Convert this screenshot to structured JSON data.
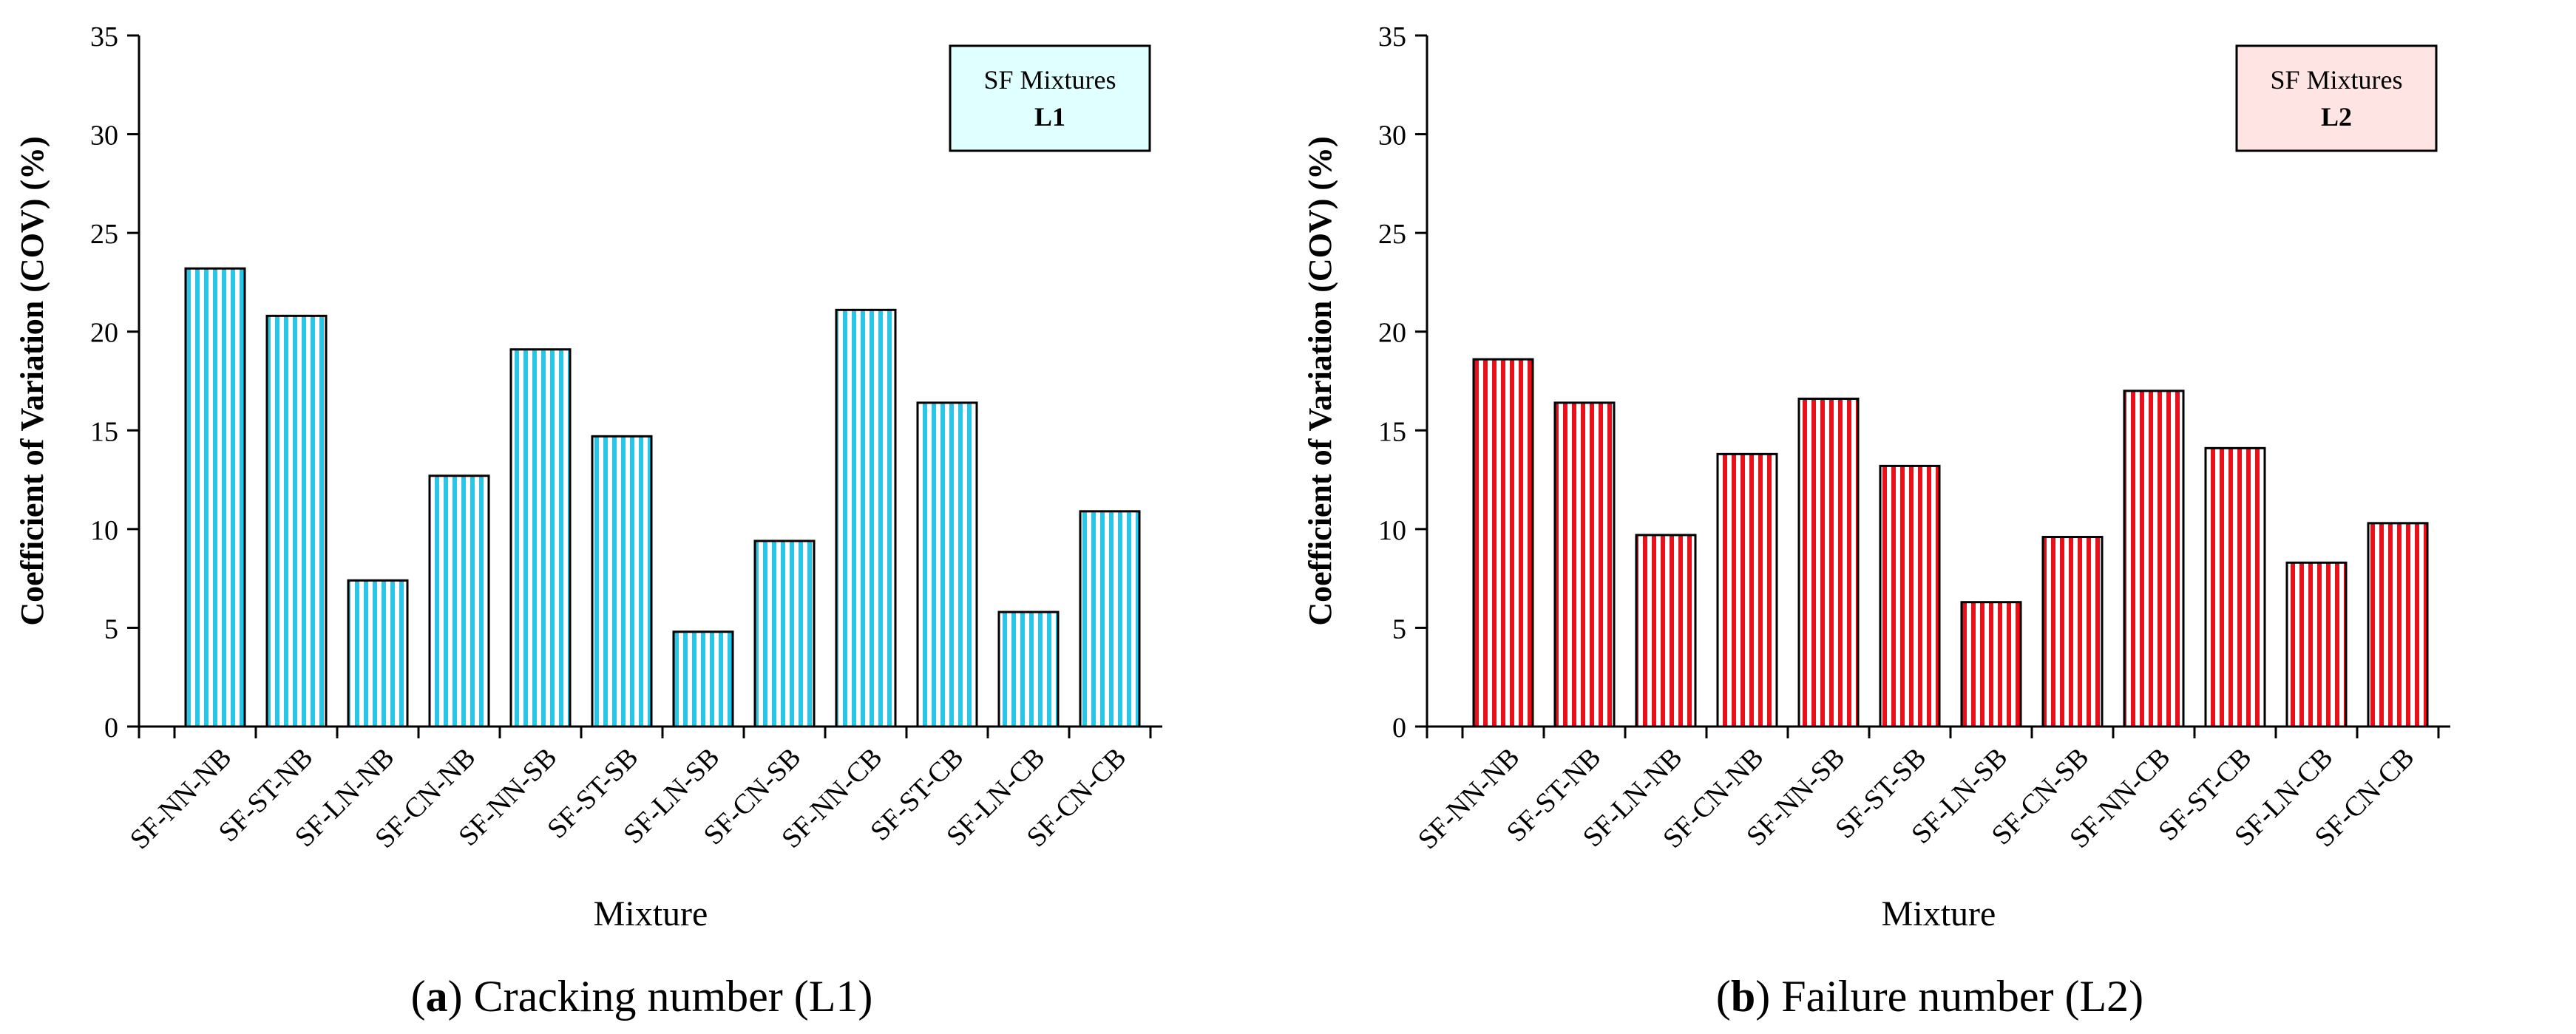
{
  "chart_data": [
    {
      "type": "bar",
      "panel_label": "a",
      "caption": " Cracking number (L1)",
      "legend_title": "SF Mixtures",
      "legend_label": "L1",
      "xlabel": "Mixture",
      "ylabel": "Coefficient of Variation (COV) (%)",
      "ylim": [
        0,
        35
      ],
      "yticks": [
        0,
        5,
        10,
        15,
        20,
        25,
        30,
        35
      ],
      "categories": [
        "SF-NN-NB",
        "SF-ST-NB",
        "SF-LN-NB",
        "SF-CN-NB",
        "SF-NN-SB",
        "SF-ST-SB",
        "SF-LN-SB",
        "SF-CN-SB",
        "SF-NN-CB",
        "SF-ST-CB",
        "SF-LN-CB",
        "SF-CN-CB"
      ],
      "values": [
        23.2,
        20.8,
        7.4,
        12.7,
        19.1,
        14.7,
        4.8,
        9.4,
        21.1,
        16.4,
        5.8,
        10.9
      ],
      "colors": {
        "stripe": "#29c6e8",
        "legend_bg": "#e0ffff"
      }
    },
    {
      "type": "bar",
      "panel_label": "b",
      "caption": " Failure number (L2)",
      "legend_title": "SF Mixtures",
      "legend_label": "L2",
      "xlabel": "Mixture",
      "ylabel": "Coefficient of Variation (COV) (%)",
      "ylim": [
        0,
        35
      ],
      "yticks": [
        0,
        5,
        10,
        15,
        20,
        25,
        30,
        35
      ],
      "categories": [
        "SF-NN-NB",
        "SF-ST-NB",
        "SF-LN-NB",
        "SF-CN-NB",
        "SF-NN-SB",
        "SF-ST-SB",
        "SF-LN-SB",
        "SF-CN-SB",
        "SF-NN-CB",
        "SF-ST-CB",
        "SF-LN-CB",
        "SF-CN-CB"
      ],
      "values": [
        18.6,
        16.4,
        9.7,
        13.8,
        16.6,
        13.2,
        6.3,
        9.6,
        17.0,
        14.1,
        8.3,
        10.3
      ],
      "colors": {
        "stripe": "#e8101a",
        "legend_bg": "#ffe4e4"
      }
    }
  ]
}
